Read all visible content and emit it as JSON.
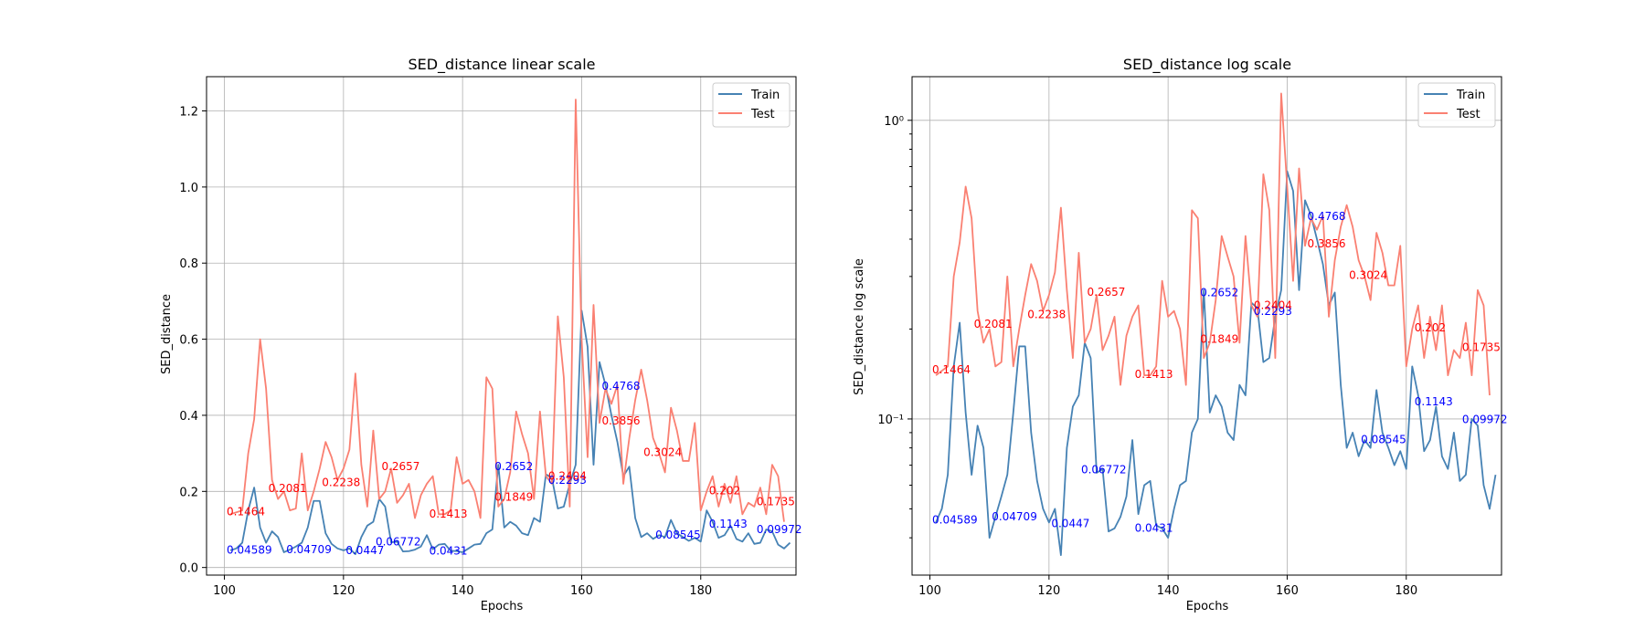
{
  "chart_data": [
    {
      "type": "line",
      "title": "SED_distance linear scale",
      "xlabel": "Epochs",
      "ylabel": "SED_distance",
      "yscale": "linear",
      "xlim": [
        97,
        196
      ],
      "ylim": [
        -0.02,
        1.29
      ],
      "xticks": [
        100,
        120,
        140,
        160,
        180
      ],
      "yticks": [
        0.0,
        0.2,
        0.4,
        0.6,
        0.8,
        1.0,
        1.2
      ],
      "ytick_labels": [
        "0.0",
        "0.2",
        "0.4",
        "0.6",
        "0.8",
        "1.0",
        "1.2"
      ],
      "grid": true,
      "legend_position": "top-right",
      "annotation_labels": {
        "Train": [
          "0.04589",
          "0.04709",
          "0.0447",
          "0.06772",
          "0.0431",
          "0.2652",
          "0.2293",
          "0.4768",
          "0.08545",
          "0.1143",
          "0.09972"
        ],
        "Test": [
          "0.1464",
          "0.2081",
          "0.2238",
          "0.2657",
          "0.1413",
          "0.1849",
          "0.2404",
          "0.3856",
          "0.3024",
          "0.202",
          "0.1735"
        ]
      }
    },
    {
      "type": "line",
      "title": "SED_distance log scale",
      "xlabel": "Epochs",
      "ylabel": "SED_distance log scale",
      "yscale": "log",
      "xlim": [
        97,
        196
      ],
      "ylim": [
        0.03,
        1.4
      ],
      "xticks": [
        100,
        120,
        140,
        160,
        180
      ],
      "yticks": [
        0.1,
        1.0
      ],
      "ytick_labels": [
        "10⁻¹",
        "10⁰"
      ],
      "grid": true,
      "legend_position": "top-right",
      "annotation_labels": {
        "Train": [
          "0.04589",
          "0.04709",
          "0.0447",
          "0.06772",
          "0.0431",
          "0.2652",
          "0.2293",
          "0.4768",
          "0.08545",
          "0.1143",
          "0.09972"
        ],
        "Test": [
          "0.1464",
          "0.2081",
          "0.2238",
          "0.2657",
          "0.1413",
          "0.1849",
          "0.2404",
          "0.3856",
          "0.3024",
          "0.202",
          "0.1735"
        ]
      }
    }
  ],
  "series_data": {
    "epochs_start": 101,
    "Train": [
      0.045,
      0.05,
      0.065,
      0.15,
      0.21,
      0.105,
      0.065,
      0.095,
      0.08,
      0.04,
      0.047,
      0.055,
      0.065,
      0.105,
      0.175,
      0.175,
      0.09,
      0.062,
      0.05,
      0.045,
      0.05,
      0.035,
      0.08,
      0.11,
      0.12,
      0.18,
      0.16,
      0.066,
      0.068,
      0.042,
      0.043,
      0.047,
      0.055,
      0.085,
      0.048,
      0.06,
      0.062,
      0.044,
      0.043,
      0.04,
      0.05,
      0.06,
      0.062,
      0.09,
      0.1,
      0.27,
      0.105,
      0.12,
      0.11,
      0.09,
      0.085,
      0.13,
      0.12,
      0.245,
      0.235,
      0.155,
      0.16,
      0.22,
      0.27,
      0.675,
      0.58,
      0.27,
      0.54,
      0.48,
      0.4,
      0.33,
      0.24,
      0.265,
      0.13,
      0.08,
      0.09,
      0.075,
      0.085,
      0.08,
      0.125,
      0.09,
      0.08,
      0.07,
      0.078,
      0.068,
      0.15,
      0.12,
      0.078,
      0.085,
      0.11,
      0.075,
      0.068,
      0.09,
      0.062,
      0.065,
      0.1,
      0.095,
      0.06,
      0.05,
      0.065
    ],
    "Test": [
      0.14,
      0.145,
      0.15,
      0.3,
      0.39,
      0.6,
      0.47,
      0.23,
      0.18,
      0.2,
      0.15,
      0.155,
      0.3,
      0.15,
      0.2,
      0.26,
      0.33,
      0.29,
      0.23,
      0.26,
      0.31,
      0.51,
      0.27,
      0.16,
      0.36,
      0.18,
      0.2,
      0.26,
      0.17,
      0.19,
      0.22,
      0.13,
      0.19,
      0.22,
      0.24,
      0.14,
      0.14,
      0.15,
      0.29,
      0.22,
      0.23,
      0.2,
      0.13,
      0.5,
      0.47,
      0.16,
      0.18,
      0.25,
      0.41,
      0.35,
      0.3,
      0.18,
      0.41,
      0.24,
      0.22,
      0.66,
      0.5,
      0.16,
      1.23,
      0.6,
      0.29,
      0.69,
      0.38,
      0.47,
      0.43,
      0.48,
      0.22,
      0.34,
      0.44,
      0.52,
      0.44,
      0.34,
      0.3,
      0.25,
      0.42,
      0.36,
      0.28,
      0.28,
      0.38,
      0.15,
      0.2,
      0.24,
      0.16,
      0.22,
      0.17,
      0.24,
      0.14,
      0.17,
      0.16,
      0.21,
      0.14,
      0.27,
      0.24,
      0.12
    ]
  },
  "annotations_xy": {
    "Train": [
      [
        101,
        0.04589
      ],
      [
        111,
        0.04709
      ],
      [
        121,
        0.0447
      ],
      [
        126,
        0.06772
      ],
      [
        135,
        0.0431
      ],
      [
        146,
        0.2652
      ],
      [
        155,
        0.2293
      ],
      [
        164,
        0.4768
      ],
      [
        173,
        0.08545
      ],
      [
        182,
        0.1143
      ],
      [
        190,
        0.09972
      ]
    ],
    "Test": [
      [
        101,
        0.1464
      ],
      [
        108,
        0.2081
      ],
      [
        117,
        0.2238
      ],
      [
        127,
        0.2657
      ],
      [
        135,
        0.1413
      ],
      [
        146,
        0.1849
      ],
      [
        155,
        0.2404
      ],
      [
        164,
        0.3856
      ],
      [
        171,
        0.3024
      ],
      [
        182,
        0.202
      ],
      [
        190,
        0.1735
      ]
    ]
  },
  "series": [
    {
      "name": "Train",
      "color": "#4682b4"
    },
    {
      "name": "Test",
      "color": "#fa8072"
    }
  ],
  "colors": {
    "train_annot": "#0000ff",
    "test_annot": "#ff0000"
  }
}
